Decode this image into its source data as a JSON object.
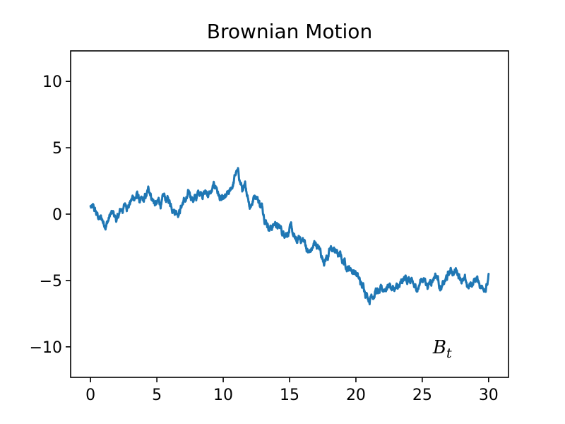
{
  "chart_data": {
    "type": "line",
    "title": "Brownian Motion",
    "xlabel": "",
    "ylabel": "",
    "xlim": [
      -1.5,
      31.5
    ],
    "ylim": [
      -12.3,
      12.3
    ],
    "xticks": [
      0,
      5,
      10,
      15,
      20,
      25,
      30
    ],
    "yticks": [
      10,
      5,
      0,
      -5,
      -10
    ],
    "ytick_labels": [
      "10",
      "5",
      "0",
      "−5",
      "−10"
    ],
    "grid": false,
    "series": [
      {
        "name": "",
        "color": "#1f77b4",
        "x": [
          0,
          0.5,
          1,
          1.5,
          2,
          2.5,
          3,
          3.5,
          4,
          4.5,
          5,
          5.5,
          6,
          6.5,
          7,
          7.5,
          8,
          8.5,
          9,
          9.5,
          10,
          10.5,
          11,
          11.5,
          12,
          12.5,
          13,
          13.5,
          14,
          14.5,
          15,
          15.5,
          16,
          16.5,
          17,
          17.5,
          18,
          18.5,
          19,
          19.5,
          20,
          20.5,
          21,
          21.5,
          22,
          22.5,
          23,
          23.5,
          24,
          24.5,
          25,
          25.5,
          26,
          26.5,
          27,
          27.5,
          28,
          28.5,
          29,
          29.5,
          30
        ],
        "y": [
          0.6,
          0,
          -0.8,
          0,
          -0.2,
          0.6,
          1.0,
          1.6,
          1.0,
          1.4,
          0.8,
          1.4,
          0.6,
          0.0,
          1.0,
          1.4,
          1.2,
          1.6,
          1.6,
          2.0,
          1.2,
          1.8,
          3.2,
          1.8,
          0.4,
          1.2,
          0.0,
          -1.2,
          -1.0,
          -1.4,
          -1.0,
          -2.0,
          -1.8,
          -2.8,
          -2.4,
          -3.4,
          -2.6,
          -2.8,
          -3.6,
          -4.0,
          -4.4,
          -5.4,
          -6.6,
          -5.6,
          -5.8,
          -5.4,
          -5.6,
          -5.2,
          -4.8,
          -5.4,
          -5.0,
          -5.2,
          -4.6,
          -5.4,
          -4.6,
          -4.2,
          -5.0,
          -5.6,
          -5.0,
          -5.4,
          -4.5
        ]
      }
    ],
    "annotations": [
      {
        "base": "B",
        "sub": "t",
        "x": 25.8,
        "y": -10.0
      }
    ]
  }
}
